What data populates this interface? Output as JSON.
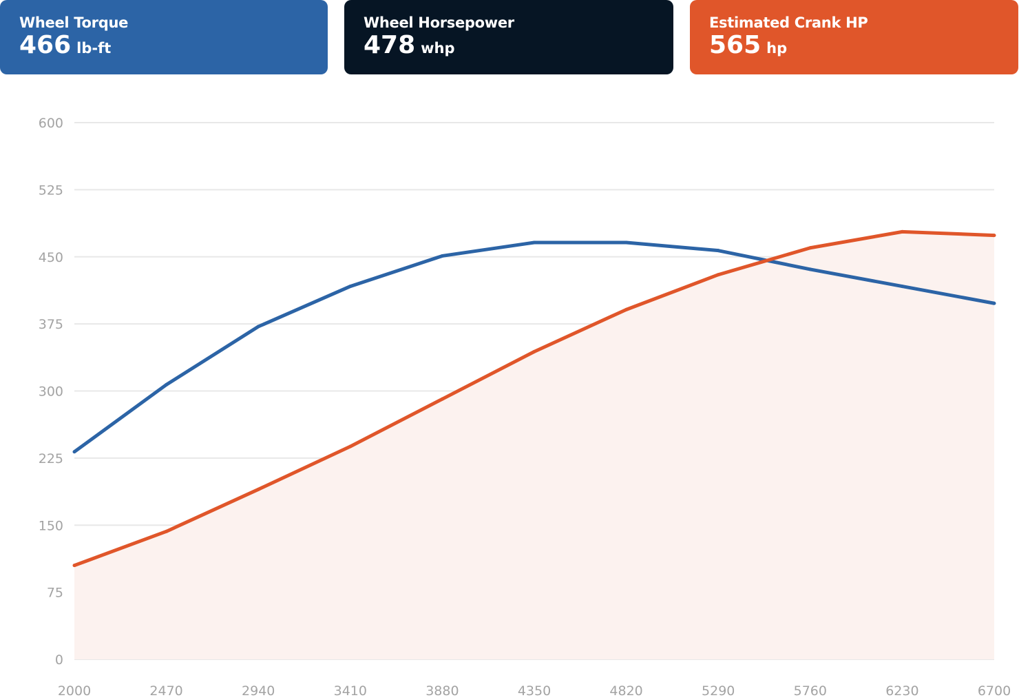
{
  "cards": [
    {
      "label": "Wheel Torque",
      "value": "466",
      "unit": "lb-ft",
      "color": "#2c64a6"
    },
    {
      "label": "Wheel Horsepower",
      "value": "478",
      "unit": "whp",
      "color": "#061524"
    },
    {
      "label": "Estimated Crank HP",
      "value": "565",
      "unit": "hp",
      "color": "#e0562a"
    }
  ],
  "chart_data": {
    "type": "line",
    "x": [
      2000,
      2470,
      2940,
      3410,
      3880,
      4350,
      4820,
      5290,
      5760,
      6230,
      6700
    ],
    "xticks": [
      "2000",
      "2470",
      "2940",
      "3410",
      "3880",
      "4350",
      "4820",
      "5290",
      "5760",
      "6230",
      "6700"
    ],
    "yticks": [
      "0",
      "75",
      "150",
      "225",
      "300",
      "375",
      "450",
      "525",
      "600"
    ],
    "xlim": [
      2000,
      6700
    ],
    "ylim": [
      0,
      600
    ],
    "grid": true,
    "series": [
      {
        "color": "#2c64a6",
        "fill": false,
        "values": [
          232,
          307,
          372,
          417,
          451,
          466,
          466,
          457,
          436,
          417,
          398
        ]
      },
      {
        "color": "#e0562a",
        "fill": true,
        "fill_color": "#fcf2ef",
        "values": [
          105,
          143,
          190,
          238,
          291,
          344,
          391,
          430,
          460,
          478,
          474
        ]
      }
    ]
  }
}
